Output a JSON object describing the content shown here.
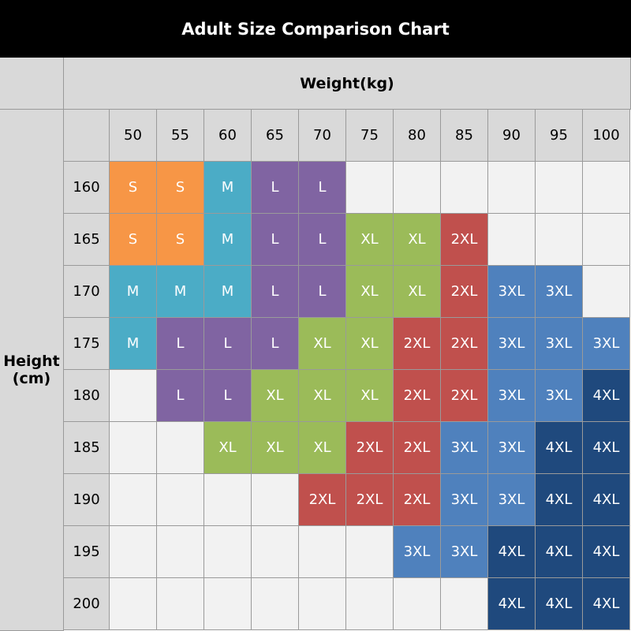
{
  "header": {
    "title": "Adult Size Comparison Chart"
  },
  "table": {
    "column_label": "Weight(kg)",
    "row_label": "Height (cm)",
    "weights": [
      50,
      55,
      60,
      65,
      70,
      75,
      80,
      85,
      90,
      95,
      100
    ],
    "heights": [
      160,
      165,
      170,
      175,
      180,
      185,
      190,
      195,
      200
    ],
    "rows": [
      [
        "S",
        "S",
        "M",
        "L",
        "L",
        null,
        null,
        null,
        null,
        null,
        null
      ],
      [
        "S",
        "S",
        "M",
        "L",
        "L",
        "XL",
        "XL",
        "2XL",
        null,
        null,
        null
      ],
      [
        "M",
        "M",
        "M",
        "L",
        "L",
        "XL",
        "XL",
        "2XL",
        "3XL",
        "3XL",
        null
      ],
      [
        "M",
        "L",
        "L",
        "L",
        "XL",
        "XL",
        "2XL",
        "2XL",
        "3XL",
        "3XL",
        "3XL"
      ],
      [
        null,
        "L",
        "L",
        "XL",
        "XL",
        "XL",
        "2XL",
        "2XL",
        "3XL",
        "3XL",
        "4XL"
      ],
      [
        null,
        null,
        "XL",
        "XL",
        "XL",
        "2XL",
        "2XL",
        "3XL",
        "3XL",
        "4XL",
        "4XL"
      ],
      [
        null,
        null,
        null,
        null,
        "2XL",
        "2XL",
        "2XL",
        "3XL",
        "3XL",
        "4XL",
        "4XL"
      ],
      [
        null,
        null,
        null,
        null,
        null,
        null,
        "3XL",
        "3XL",
        "4XL",
        "4XL",
        "4XL"
      ],
      [
        null,
        null,
        null,
        null,
        null,
        null,
        null,
        null,
        "4XL",
        "4XL",
        "4XL"
      ]
    ],
    "size_colors": {
      "S": "#f79646",
      "M": "#4bacc6",
      "L": "#8064a2",
      "XL": "#9bbb59",
      "2XL": "#c0504d",
      "3XL": "#4f81bd",
      "4XL": "#1f497d"
    }
  }
}
